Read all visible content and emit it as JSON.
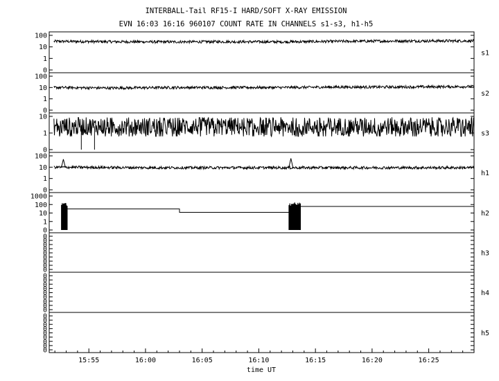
{
  "title": "INTERBALL-Tail RF15-I HARD/SOFT X-RAY EMISSION",
  "subtitle": "EVN 16:03 16:16 960107  COUNT RATE IN CHANNELS s1-s3, h1-h5",
  "chart_data": {
    "type": "line",
    "xlabel": "time UT",
    "x_range": [
      "15:51:30",
      "16:29:00"
    ],
    "x_ticks": [
      "15:55",
      "16:00",
      "16:05",
      "16:10",
      "16:15",
      "16:20",
      "16:25"
    ],
    "grid": false,
    "panels": [
      {
        "name": "s1",
        "y_scale": "log",
        "y_ticks": [
          "100",
          "10",
          "1",
          "0"
        ],
        "samples": [
          {
            "t": "15:52",
            "v": 30
          },
          {
            "t": "15:57",
            "v": 28
          },
          {
            "t": "16:02",
            "v": 27
          },
          {
            "t": "16:07",
            "v": 28
          },
          {
            "t": "16:12",
            "v": 27
          },
          {
            "t": "16:17",
            "v": 30
          },
          {
            "t": "16:22",
            "v": 32
          },
          {
            "t": "16:28",
            "v": 33
          }
        ]
      },
      {
        "name": "s2",
        "y_scale": "log",
        "y_ticks": [
          "100",
          "10",
          "1",
          "0"
        ],
        "samples": [
          {
            "t": "15:52",
            "v": 10
          },
          {
            "t": "15:57",
            "v": 9
          },
          {
            "t": "16:02",
            "v": 10
          },
          {
            "t": "16:07",
            "v": 10
          },
          {
            "t": "16:12",
            "v": 10
          },
          {
            "t": "16:17",
            "v": 11
          },
          {
            "t": "16:22",
            "v": 11
          },
          {
            "t": "16:28",
            "v": 12
          }
        ]
      },
      {
        "name": "s3",
        "y_scale": "log",
        "y_ticks": [
          "10",
          "1",
          "0"
        ],
        "samples": [
          {
            "t": "15:52",
            "v": 2.5
          },
          {
            "t": "15:57",
            "v": 2.5
          },
          {
            "t": "16:02",
            "v": 2.5
          },
          {
            "t": "16:07",
            "v": 2.5
          },
          {
            "t": "16:12",
            "v": 2.5
          },
          {
            "t": "16:17",
            "v": 2.5
          },
          {
            "t": "16:22",
            "v": 2.5
          },
          {
            "t": "16:28",
            "v": 2.5
          }
        ],
        "drops_to_zero": [
          "15:54:20",
          "15:55:30"
        ]
      },
      {
        "name": "h1",
        "y_scale": "log",
        "y_ticks": [
          "100",
          "10",
          "1",
          "0"
        ],
        "samples": [
          {
            "t": "15:52",
            "v": 10
          },
          {
            "t": "16:00",
            "v": 9
          },
          {
            "t": "16:08",
            "v": 9
          },
          {
            "t": "16:16",
            "v": 9
          },
          {
            "t": "16:24",
            "v": 9
          },
          {
            "t": "16:28",
            "v": 9
          }
        ],
        "spikes": [
          {
            "t": "15:52:45",
            "v": 50
          },
          {
            "t": "16:12:50",
            "v": 60
          }
        ]
      },
      {
        "name": "h2",
        "y_scale": "log",
        "y_ticks": [
          "1000",
          "100",
          "10",
          "1",
          "0"
        ],
        "steps": [
          {
            "t0": "15:53:05",
            "t1": "16:03:00",
            "v": 30
          },
          {
            "t0": "16:03:00",
            "t1": "16:12:40",
            "v": 12
          },
          {
            "t0": "16:13:40",
            "t1": "16:29:00",
            "v": 60
          }
        ],
        "bursts": [
          {
            "t0": "15:52:35",
            "t1": "15:53:05",
            "v": 100
          },
          {
            "t0": "16:12:40",
            "t1": "16:13:40",
            "v": 120
          }
        ]
      },
      {
        "name": "h3",
        "y_scale": "log",
        "y_ticks": [
          "0",
          "0",
          "0",
          "0",
          "0",
          "0",
          "0",
          "0",
          "0"
        ]
      },
      {
        "name": "h4",
        "y_scale": "log",
        "y_ticks": [
          "0",
          "0",
          "0",
          "0",
          "0",
          "0",
          "0",
          "0",
          "0"
        ]
      },
      {
        "name": "h5",
        "y_scale": "log",
        "y_ticks": [
          "0",
          "0",
          "0",
          "0",
          "0",
          "0",
          "0",
          "0",
          "0"
        ]
      }
    ]
  }
}
